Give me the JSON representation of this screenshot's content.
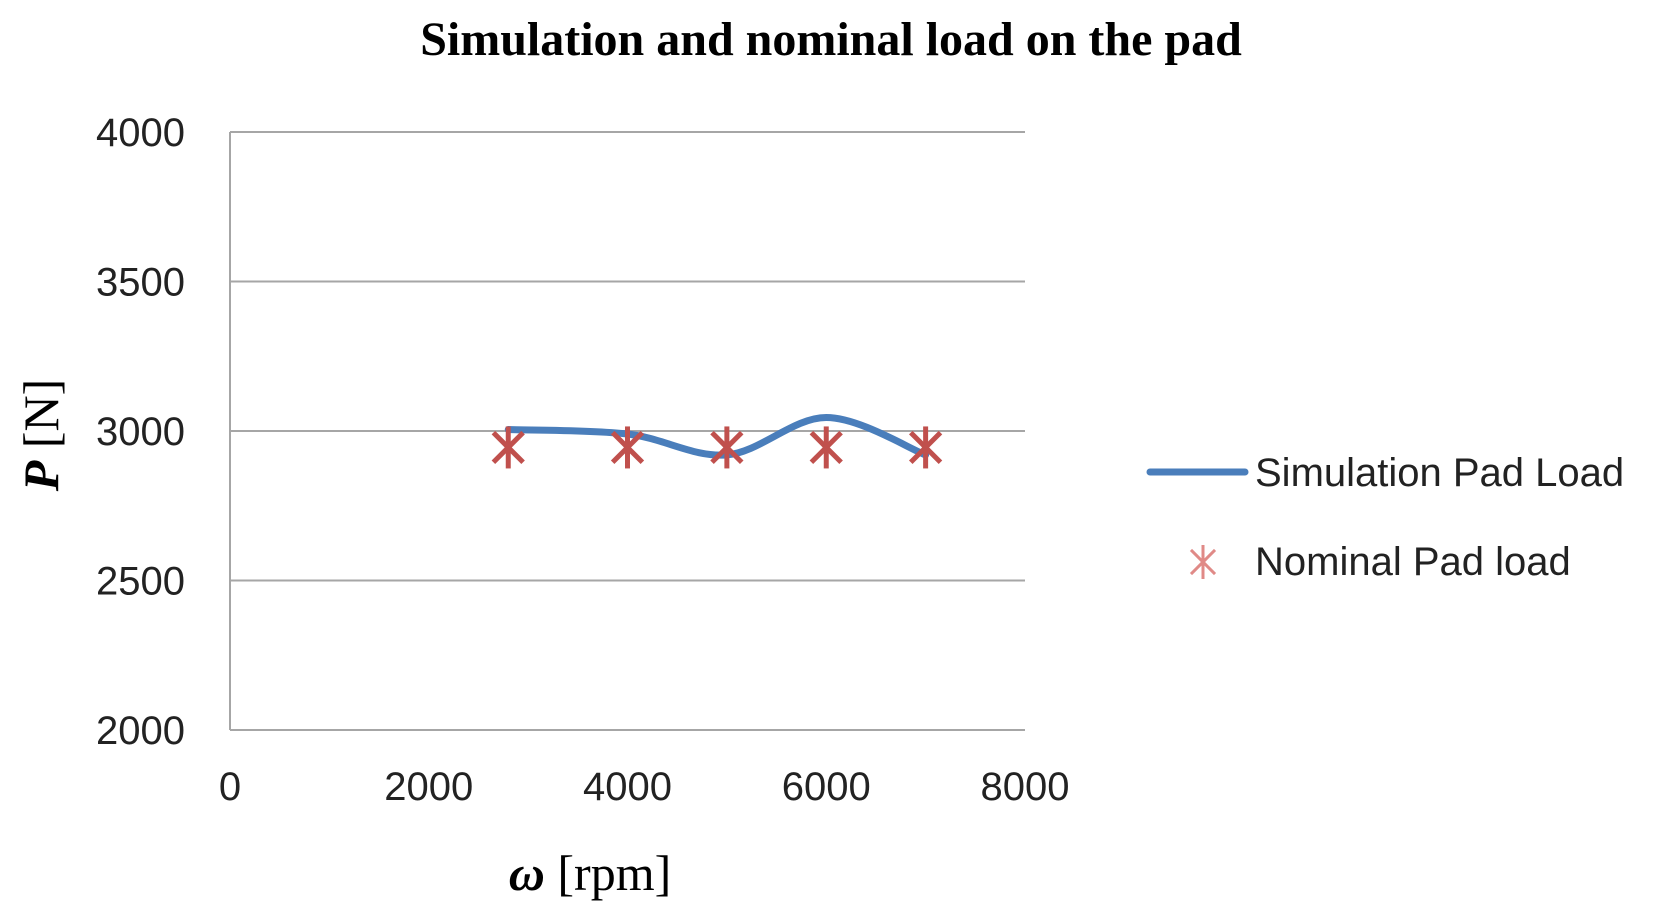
{
  "chart_data": {
    "type": "line",
    "title": "Simulation  and nominal load on the pad",
    "xlabel": {
      "symbol": "ω",
      "unit": " [rpm]"
    },
    "ylabel": {
      "symbol": "P",
      "unit": " [N]"
    },
    "xlim": [
      0,
      8000
    ],
    "ylim": [
      2000,
      4000
    ],
    "xticks": [
      0,
      2000,
      4000,
      6000,
      8000
    ],
    "yticks": [
      2000,
      2500,
      3000,
      3500,
      4000
    ],
    "grid": "horizontal",
    "legend_position": "right",
    "series": [
      {
        "name": "Simulation Pad Load",
        "style": "smooth-line",
        "color": "#4a7ebb",
        "x": [
          2800,
          4000,
          5000,
          6000,
          7000
        ],
        "y": [
          3005,
          2990,
          2920,
          3045,
          2920
        ]
      },
      {
        "name": "Nominal Pad load",
        "style": "asterisk-marker",
        "color": "#c0504d",
        "x": [
          2800,
          4000,
          5000,
          6000,
          7000
        ],
        "y": [
          2945,
          2945,
          2945,
          2945,
          2945
        ]
      }
    ]
  }
}
